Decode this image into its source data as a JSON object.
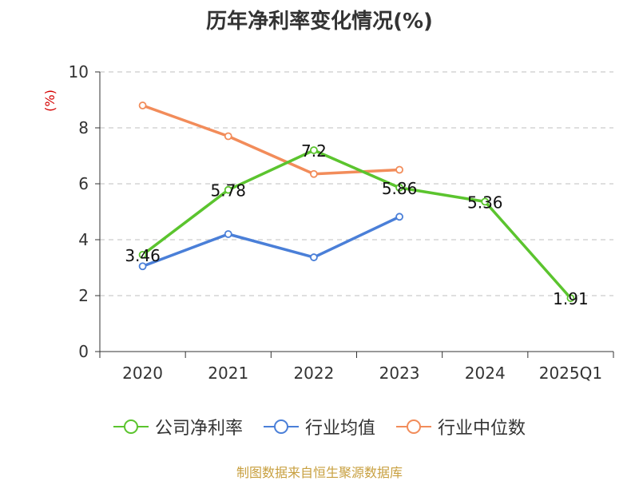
{
  "chart_data": {
    "type": "line",
    "title": "历年净利率变化情况(%)",
    "ylabel": "(%)",
    "xlabel": "",
    "categories": [
      "2020",
      "2021",
      "2022",
      "2023",
      "2024",
      "2025Q1"
    ],
    "ylim": [
      0,
      10
    ],
    "yticks": [
      "0",
      "2",
      "4",
      "6",
      "8",
      "10"
    ],
    "grid": true,
    "legend_position": "bottom",
    "series": [
      {
        "name": "公司净利率",
        "color": "#5bc42e",
        "values": [
          3.46,
          5.78,
          7.2,
          5.86,
          5.36,
          1.91
        ],
        "labels": [
          "3.46",
          "5.78",
          "7.2",
          "5.86",
          "5.36",
          "1.91"
        ]
      },
      {
        "name": "行业均值",
        "color": "#4a7fd8",
        "values": [
          3.05,
          4.2,
          3.37,
          4.82,
          null,
          null
        ]
      },
      {
        "name": "行业中位数",
        "color": "#f28c5a",
        "values": [
          8.8,
          7.7,
          6.35,
          6.5,
          null,
          null
        ]
      }
    ]
  },
  "source_text": "制图数据来自恒生聚源数据库"
}
